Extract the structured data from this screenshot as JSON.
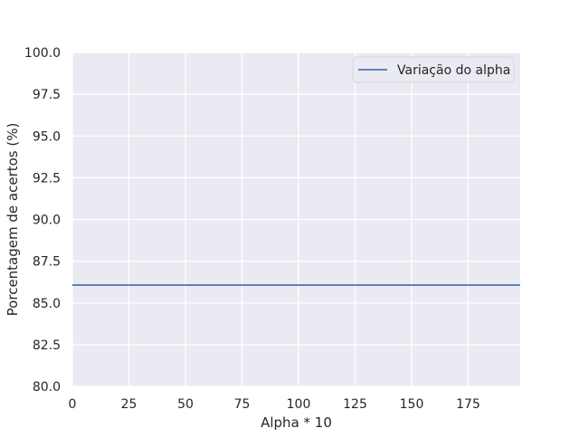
{
  "chart_data": {
    "type": "line",
    "title": "",
    "xlabel": "Alpha * 10",
    "ylabel": "Porcentagem de acertos (%)",
    "xlim": [
      0,
      198
    ],
    "ylim": [
      80.0,
      100.0
    ],
    "x_ticks": [
      0,
      25,
      50,
      75,
      100,
      125,
      150,
      175
    ],
    "x_tick_labels": [
      "0",
      "25",
      "50",
      "75",
      "100",
      "125",
      "150",
      "175"
    ],
    "y_ticks": [
      80.0,
      82.5,
      85.0,
      87.5,
      90.0,
      92.5,
      95.0,
      97.5,
      100.0
    ],
    "y_tick_labels": [
      "80.0",
      "82.5",
      "85.0",
      "87.5",
      "90.0",
      "92.5",
      "95.0",
      "97.5",
      "100.0"
    ],
    "grid": true,
    "legend_position": "top-right",
    "series": [
      {
        "name": "Variação do alpha",
        "color": "#4c72b0",
        "x": [
          0,
          198
        ],
        "y": [
          86.07,
          86.07
        ]
      }
    ]
  },
  "colors": {
    "plot_background": "#eaeaf2",
    "grid": "#ffffff",
    "text": "#262626"
  }
}
